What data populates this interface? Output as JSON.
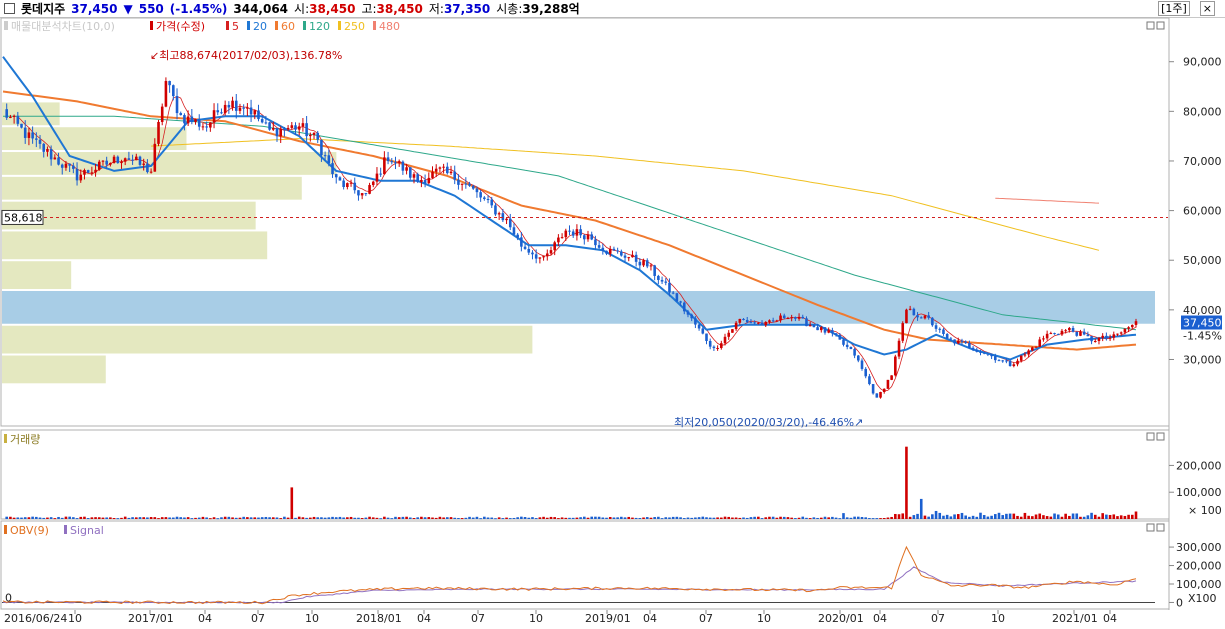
{
  "header": {
    "name": "롯데지주",
    "price": "37,450",
    "change_arrow": "▼",
    "change": "550",
    "change_pct": "(-1.45%)",
    "volume": "344,064",
    "open_label": "시:",
    "open": "38,450",
    "high_label": "고:",
    "high": "38,450",
    "low_label": "저:",
    "low": "37,350",
    "mcap_label": "시총:",
    "mcap": "39,288억",
    "period": "[1주]",
    "close_btn": "×"
  },
  "legend": {
    "volume_profile": "매물대분석차트(10,0)",
    "price": "가격(수정)",
    "ma": [
      {
        "label": "5",
        "color": "#d62020"
      },
      {
        "label": "20",
        "color": "#1f77d4"
      },
      {
        "label": "60",
        "color": "#f07a30"
      },
      {
        "label": "120",
        "color": "#2ea88a"
      },
      {
        "label": "250",
        "color": "#f0c020"
      },
      {
        "label": "480",
        "color": "#f08070"
      }
    ]
  },
  "panels": {
    "volume_title": "거래량",
    "obv_title": "OBV(9)",
    "obv_signal": "Signal"
  },
  "annotations": {
    "high": "최고88,674(2017/02/03),136.78%",
    "low": "최저20,050(2020/03/20),-46.46%",
    "ref_line": "58,618",
    "last_price": "37,450",
    "last_pct": "-1.45%"
  },
  "colors": {
    "up": "#d00000",
    "down": "#1a5fd0",
    "ma5": "#d62020",
    "ma20": "#1f77d4",
    "ma60": "#f07a30",
    "ma120": "#2ea88a",
    "ma250": "#f0c020",
    "ma480": "#f08070",
    "profile": "#e4e8c0",
    "profile_current": "#a8cde6",
    "obv": "#e07020",
    "signal": "#9070c0"
  },
  "chart_data": {
    "type": "candlestick",
    "x_ticks": [
      "2016/06/24",
      "10",
      "2017/01",
      "04",
      "07",
      "10",
      "2018/01",
      "04",
      "07",
      "10",
      "2019/01",
      "04",
      "07",
      "10",
      "2020/01",
      "04",
      "07",
      "10",
      "2021/01",
      "04"
    ],
    "price_axis": {
      "ticks": [
        "90,000",
        "80,000",
        "70,000",
        "60,000",
        "50,000",
        "40,000",
        "30,000"
      ],
      "values": [
        90000,
        80000,
        70000,
        60000,
        50000,
        40000,
        30000
      ],
      "ylim": [
        17000,
        98000
      ]
    },
    "volume_axis": {
      "ticks": [
        "200,000",
        "100,000"
      ],
      "values": [
        200000,
        100000
      ],
      "unit": "× 100",
      "ylim": [
        0,
        280000
      ]
    },
    "obv_axis": {
      "ticks": [
        "300,000",
        "200,000",
        "100,000",
        "0"
      ],
      "values": [
        300000,
        200000,
        100000,
        0
      ],
      "unit": "X100",
      "ylim": [
        -30000,
        360000
      ]
    },
    "close_path": [
      [
        0,
        80000
      ],
      [
        8,
        74000
      ],
      [
        20,
        67000
      ],
      [
        33,
        71000
      ],
      [
        40,
        68000
      ],
      [
        44,
        86000
      ],
      [
        48,
        79000
      ],
      [
        55,
        77000
      ],
      [
        60,
        82000
      ],
      [
        66,
        81000
      ],
      [
        72,
        76000
      ],
      [
        80,
        77000
      ],
      [
        85,
        74000
      ],
      [
        90,
        66000
      ],
      [
        98,
        63000
      ],
      [
        104,
        71000
      ],
      [
        112,
        66000
      ],
      [
        118,
        68000
      ],
      [
        124,
        66000
      ],
      [
        130,
        62000
      ],
      [
        136,
        58000
      ],
      [
        140,
        53000
      ],
      [
        146,
        50000
      ],
      [
        152,
        56000
      ],
      [
        158,
        55000
      ],
      [
        163,
        52000
      ],
      [
        168,
        51000
      ],
      [
        174,
        49000
      ],
      [
        181,
        43000
      ],
      [
        188,
        36000
      ],
      [
        192,
        32000
      ],
      [
        199,
        38000
      ],
      [
        206,
        37000
      ],
      [
        212,
        39000
      ],
      [
        218,
        37000
      ],
      [
        224,
        35000
      ],
      [
        230,
        31000
      ],
      [
        236,
        22000
      ],
      [
        240,
        27000
      ],
      [
        244,
        40000
      ],
      [
        250,
        38000
      ],
      [
        255,
        34000
      ],
      [
        260,
        33000
      ],
      [
        266,
        31000
      ],
      [
        272,
        29000
      ],
      [
        276,
        31000
      ],
      [
        282,
        35000
      ],
      [
        288,
        36000
      ],
      [
        294,
        34000
      ],
      [
        300,
        34500
      ],
      [
        306,
        37450
      ]
    ],
    "ma20_path": [
      [
        0,
        91000
      ],
      [
        8,
        83000
      ],
      [
        18,
        71000
      ],
      [
        30,
        68000
      ],
      [
        40,
        69000
      ],
      [
        50,
        78000
      ],
      [
        60,
        79000
      ],
      [
        70,
        79000
      ],
      [
        80,
        75000
      ],
      [
        90,
        68000
      ],
      [
        102,
        66000
      ],
      [
        112,
        66000
      ],
      [
        122,
        63000
      ],
      [
        132,
        58000
      ],
      [
        142,
        53000
      ],
      [
        152,
        53000
      ],
      [
        162,
        52000
      ],
      [
        172,
        48000
      ],
      [
        180,
        43000
      ],
      [
        190,
        36000
      ],
      [
        200,
        37000
      ],
      [
        210,
        37000
      ],
      [
        220,
        37000
      ],
      [
        230,
        33000
      ],
      [
        238,
        31000
      ],
      [
        244,
        32000
      ],
      [
        252,
        35000
      ],
      [
        262,
        32000
      ],
      [
        272,
        30000
      ],
      [
        282,
        33000
      ],
      [
        292,
        34000
      ],
      [
        306,
        35000
      ]
    ],
    "ma60_path": [
      [
        0,
        84000
      ],
      [
        20,
        82000
      ],
      [
        40,
        79000
      ],
      [
        60,
        78000
      ],
      [
        80,
        74000
      ],
      [
        100,
        71000
      ],
      [
        120,
        67000
      ],
      [
        140,
        61000
      ],
      [
        160,
        58000
      ],
      [
        180,
        53000
      ],
      [
        200,
        47000
      ],
      [
        220,
        41000
      ],
      [
        238,
        36000
      ],
      [
        250,
        34000
      ],
      [
        270,
        33000
      ],
      [
        290,
        32000
      ],
      [
        306,
        33000
      ]
    ],
    "ma120_path": [
      [
        0,
        79000
      ],
      [
        30,
        79000
      ],
      [
        70,
        77000
      ],
      [
        110,
        72000
      ],
      [
        150,
        67000
      ],
      [
        190,
        57000
      ],
      [
        230,
        47000
      ],
      [
        270,
        39000
      ],
      [
        306,
        36000
      ]
    ],
    "ma250_path": [
      [
        40,
        73000
      ],
      [
        80,
        74500
      ],
      [
        120,
        73000
      ],
      [
        160,
        71000
      ],
      [
        200,
        68000
      ],
      [
        240,
        63000
      ],
      [
        280,
        55000
      ],
      [
        296,
        52000
      ]
    ],
    "ma480_path": [
      [
        268,
        62500
      ],
      [
        296,
        61500
      ]
    ],
    "volume_profile": [
      {
        "price_low": 77000,
        "price_high": 82000,
        "rel": 0.05
      },
      {
        "price_low": 72000,
        "price_high": 77000,
        "rel": 0.16
      },
      {
        "price_low": 67000,
        "price_high": 72000,
        "rel": 0.29
      },
      {
        "price_low": 62000,
        "price_high": 67000,
        "rel": 0.26
      },
      {
        "price_low": 56000,
        "price_high": 62000,
        "rel": 0.22
      },
      {
        "price_low": 50000,
        "price_high": 56000,
        "rel": 0.23
      },
      {
        "price_low": 44000,
        "price_high": 50000,
        "rel": 0.06
      },
      {
        "price_low": 37000,
        "price_high": 44000,
        "rel": 1.0,
        "current": true
      },
      {
        "price_low": 31000,
        "price_high": 37000,
        "rel": 0.46
      },
      {
        "price_low": 25000,
        "price_high": 31000,
        "rel": 0.09
      }
    ],
    "volume_spikes": [
      [
        78,
        118000
      ],
      [
        202,
        7000
      ],
      [
        227,
        22000
      ],
      [
        244,
        270000
      ],
      [
        248,
        75000
      ],
      [
        252,
        30000
      ],
      [
        306,
        28000
      ]
    ],
    "obv_path": [
      [
        0,
        2000
      ],
      [
        70,
        0
      ],
      [
        79,
        40000
      ],
      [
        90,
        60000
      ],
      [
        110,
        78000
      ],
      [
        140,
        72000
      ],
      [
        170,
        78000
      ],
      [
        200,
        70000
      ],
      [
        220,
        65000
      ],
      [
        226,
        80000
      ],
      [
        240,
        80000
      ],
      [
        244,
        300000
      ],
      [
        248,
        150000
      ],
      [
        256,
        90000
      ],
      [
        266,
        95000
      ],
      [
        276,
        80000
      ],
      [
        290,
        115000
      ],
      [
        300,
        95000
      ],
      [
        306,
        130000
      ]
    ],
    "signal_path": [
      [
        0,
        1000
      ],
      [
        75,
        0
      ],
      [
        82,
        30000
      ],
      [
        100,
        65000
      ],
      [
        130,
        72000
      ],
      [
        170,
        72000
      ],
      [
        210,
        68000
      ],
      [
        238,
        72000
      ],
      [
        246,
        190000
      ],
      [
        254,
        110000
      ],
      [
        270,
        90000
      ],
      [
        290,
        105000
      ],
      [
        306,
        115000
      ]
    ]
  }
}
